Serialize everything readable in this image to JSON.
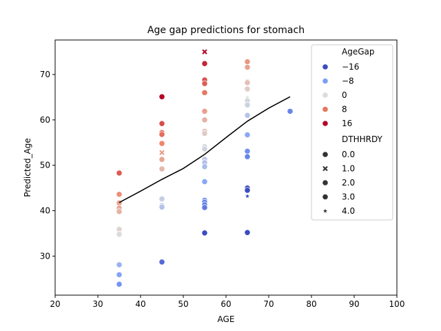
{
  "chart_data": {
    "type": "scatter",
    "title": "Age gap predictions for stomach",
    "xlabel": "AGE",
    "ylabel": "Predicted_Age",
    "xlim": [
      20,
      100
    ],
    "ylim": [
      21.4,
      77.6
    ],
    "xticks": [
      20,
      30,
      40,
      50,
      60,
      70,
      80,
      90,
      100
    ],
    "yticks": [
      30,
      40,
      50,
      60,
      70
    ],
    "grid": false,
    "legend": {
      "placement": "top-right",
      "hue_title": "AgeGap",
      "hue_entries": [
        {
          "label": "−16",
          "color": "#3b4cc0"
        },
        {
          "label": "−8",
          "color": "#7b9ff9"
        },
        {
          "label": "0",
          "color": "#dddcdc"
        },
        {
          "label": "8",
          "color": "#e8765c"
        },
        {
          "label": "16",
          "color": "#b40426"
        }
      ],
      "style_title": "DTHHRDY",
      "style_entries": [
        {
          "label": "0.0",
          "marker": "circle"
        },
        {
          "label": "1.0",
          "marker": "x"
        },
        {
          "label": "2.0",
          "marker": "circle"
        },
        {
          "label": "3.0",
          "marker": "circle"
        },
        {
          "label": "4.0",
          "marker": "star"
        }
      ]
    },
    "colormap": {
      "name": "coolwarm",
      "min": -20,
      "max": 20
    },
    "points": [
      {
        "x": 35,
        "y": 48.3,
        "gap": 13.3,
        "m": "circle"
      },
      {
        "x": 35,
        "y": 43.6,
        "gap": 8.6,
        "m": "circle"
      },
      {
        "x": 35,
        "y": 41.7,
        "gap": 6.7,
        "m": "circle"
      },
      {
        "x": 35,
        "y": 40.6,
        "gap": 5.6,
        "m": "circle"
      },
      {
        "x": 35,
        "y": 39.8,
        "gap": 4.8,
        "m": "circle"
      },
      {
        "x": 35,
        "y": 35.9,
        "gap": 0.9,
        "m": "circle"
      },
      {
        "x": 35,
        "y": 34.8,
        "gap": -0.2,
        "m": "circle"
      },
      {
        "x": 35,
        "y": 28.1,
        "gap": -6.9,
        "m": "circle"
      },
      {
        "x": 35,
        "y": 25.9,
        "gap": -9.1,
        "m": "circle"
      },
      {
        "x": 35,
        "y": 23.8,
        "gap": -11.2,
        "m": "circle"
      },
      {
        "x": 45,
        "y": 65.1,
        "gap": 20.1,
        "m": "circle"
      },
      {
        "x": 45,
        "y": 59.2,
        "gap": 14.2,
        "m": "circle"
      },
      {
        "x": 45,
        "y": 57.2,
        "gap": 12.2,
        "m": "circle"
      },
      {
        "x": 45,
        "y": 56.8,
        "gap": 11.8,
        "m": "circle"
      },
      {
        "x": 45,
        "y": 54.8,
        "gap": 9.8,
        "m": "circle"
      },
      {
        "x": 45,
        "y": 52.8,
        "gap": 7.8,
        "m": "x"
      },
      {
        "x": 45,
        "y": 51.3,
        "gap": 6.3,
        "m": "circle"
      },
      {
        "x": 45,
        "y": 49.2,
        "gap": 4.2,
        "m": "circle"
      },
      {
        "x": 45,
        "y": 42.6,
        "gap": -2.4,
        "m": "circle"
      },
      {
        "x": 45,
        "y": 41.1,
        "gap": -3.9,
        "m": "circle"
      },
      {
        "x": 45,
        "y": 40.8,
        "gap": -4.2,
        "m": "circle"
      },
      {
        "x": 45,
        "y": 28.7,
        "gap": -16.3,
        "m": "circle"
      },
      {
        "x": 55,
        "y": 75.0,
        "gap": 20.0,
        "m": "x"
      },
      {
        "x": 55,
        "y": 72.4,
        "gap": 17.4,
        "m": "circle"
      },
      {
        "x": 55,
        "y": 68.8,
        "gap": 13.8,
        "m": "circle"
      },
      {
        "x": 55,
        "y": 68.0,
        "gap": 13.0,
        "m": "circle"
      },
      {
        "x": 55,
        "y": 66.0,
        "gap": 11.0,
        "m": "circle"
      },
      {
        "x": 55,
        "y": 61.9,
        "gap": 6.9,
        "m": "circle"
      },
      {
        "x": 55,
        "y": 60.0,
        "gap": 5.0,
        "m": "circle"
      },
      {
        "x": 55,
        "y": 57.5,
        "gap": 2.5,
        "m": "circle"
      },
      {
        "x": 55,
        "y": 57.0,
        "gap": 2.0,
        "m": "circle"
      },
      {
        "x": 55,
        "y": 54.1,
        "gap": -0.9,
        "m": "circle"
      },
      {
        "x": 55,
        "y": 53.6,
        "gap": -1.4,
        "m": "circle"
      },
      {
        "x": 55,
        "y": 51.3,
        "gap": -3.7,
        "m": "circle"
      },
      {
        "x": 55,
        "y": 50.6,
        "gap": -4.4,
        "m": "circle"
      },
      {
        "x": 55,
        "y": 49.7,
        "gap": -5.3,
        "m": "circle"
      },
      {
        "x": 55,
        "y": 46.4,
        "gap": -8.6,
        "m": "circle"
      },
      {
        "x": 55,
        "y": 42.3,
        "gap": -12.7,
        "m": "circle"
      },
      {
        "x": 55,
        "y": 41.9,
        "gap": -13.1,
        "m": "circle"
      },
      {
        "x": 55,
        "y": 41.3,
        "gap": -13.7,
        "m": "circle"
      },
      {
        "x": 55,
        "y": 40.7,
        "gap": -14.3,
        "m": "circle"
      },
      {
        "x": 55,
        "y": 35.1,
        "gap": -19.9,
        "m": "circle"
      },
      {
        "x": 65,
        "y": 72.8,
        "gap": 7.8,
        "m": "circle"
      },
      {
        "x": 65,
        "y": 71.6,
        "gap": 6.6,
        "m": "circle"
      },
      {
        "x": 65,
        "y": 68.4,
        "gap": 3.4,
        "m": "circle"
      },
      {
        "x": 65,
        "y": 68.2,
        "gap": 3.2,
        "m": "circle"
      },
      {
        "x": 65,
        "y": 66.8,
        "gap": 1.8,
        "m": "circle"
      },
      {
        "x": 65,
        "y": 64.9,
        "gap": -0.1,
        "m": "star"
      },
      {
        "x": 65,
        "y": 64.2,
        "gap": -0.8,
        "m": "circle"
      },
      {
        "x": 65,
        "y": 63.3,
        "gap": -1.7,
        "m": "circle"
      },
      {
        "x": 65,
        "y": 61.0,
        "gap": -4.0,
        "m": "circle"
      },
      {
        "x": 65,
        "y": 56.7,
        "gap": -8.3,
        "m": "circle"
      },
      {
        "x": 65,
        "y": 53.1,
        "gap": -11.9,
        "m": "circle"
      },
      {
        "x": 65,
        "y": 51.9,
        "gap": -13.1,
        "m": "circle"
      },
      {
        "x": 65,
        "y": 45.0,
        "gap": -20.0,
        "m": "circle"
      },
      {
        "x": 65,
        "y": 44.5,
        "gap": -20.5,
        "m": "circle"
      },
      {
        "x": 65,
        "y": 43.2,
        "gap": -21.8,
        "m": "star"
      },
      {
        "x": 65,
        "y": 35.2,
        "gap": -29.8,
        "m": "circle"
      },
      {
        "x": 75,
        "y": 61.9,
        "gap": -13.1,
        "m": "circle"
      }
    ],
    "line": {
      "x": [
        35,
        40,
        45,
        50,
        55,
        60,
        65,
        70,
        75
      ],
      "y": [
        41.8,
        44.3,
        46.9,
        49.3,
        52.4,
        56.1,
        59.7,
        62.6,
        65.1
      ]
    }
  }
}
